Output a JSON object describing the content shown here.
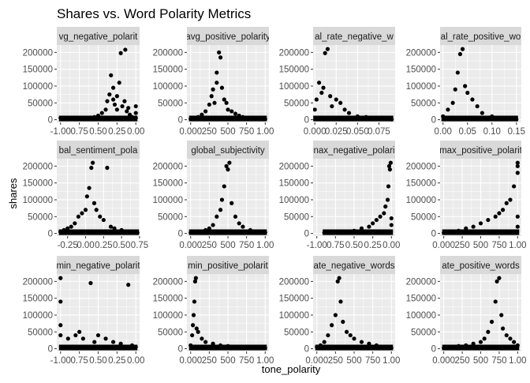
{
  "chart_data": {
    "type": "scatter",
    "title": "Shares vs. Word Polarity Metrics",
    "xlabel": "tone_polarity",
    "ylabel": "shares",
    "ylim": [
      -8000,
      222000
    ],
    "y_ticks": [
      0,
      50000,
      100000,
      150000,
      200000
    ],
    "y_tick_labels": [
      "0",
      "50000",
      "100000",
      "150000",
      "200000"
    ],
    "grid": true,
    "panels": [
      {
        "strip": "avg_negative_polarity",
        "strip_visible": "vg_negative_polarit",
        "xlim": [
          -1.05,
          0.05
        ],
        "x_ticks": [
          -1.0,
          -0.75,
          -0.5,
          -0.25,
          0.0
        ],
        "x_tick_labels": [
          "-1.00",
          "0.75",
          "0.50",
          "0.25",
          "0.00"
        ],
        "points": [
          [
            -1.0,
            5000
          ],
          [
            -0.97,
            3000
          ],
          [
            -0.7,
            2000
          ],
          [
            -0.6,
            6000
          ],
          [
            -0.55,
            8000
          ],
          [
            -0.5,
            12000
          ],
          [
            -0.45,
            20000
          ],
          [
            -0.4,
            30000
          ],
          [
            -0.38,
            55000
          ],
          [
            -0.35,
            75000
          ],
          [
            -0.33,
            132000
          ],
          [
            -0.3,
            95000
          ],
          [
            -0.3,
            60000
          ],
          [
            -0.28,
            45000
          ],
          [
            -0.25,
            70000
          ],
          [
            -0.25,
            30000
          ],
          [
            -0.22,
            110000
          ],
          [
            -0.2,
            198000
          ],
          [
            -0.18,
            40000
          ],
          [
            -0.15,
            55000
          ],
          [
            -0.14,
            208000
          ],
          [
            -0.12,
            25000
          ],
          [
            -0.1,
            35000
          ],
          [
            -0.08,
            15000
          ],
          [
            -0.05,
            8000
          ],
          [
            0.0,
            20000
          ],
          [
            0.0,
            40000
          ],
          [
            0.0,
            5000
          ]
        ]
      },
      {
        "strip": "avg_positive_polarity",
        "strip_visible": "avg_positive_polarity",
        "xlim": [
          -0.05,
          1.05
        ],
        "x_ticks": [
          0.0,
          0.25,
          0.5,
          0.75,
          1.0
        ],
        "x_tick_labels": [
          "0.000",
          "250",
          "500",
          "750",
          "1.00"
        ],
        "points": [
          [
            0.0,
            2000
          ],
          [
            0.05,
            5000
          ],
          [
            0.1,
            8000
          ],
          [
            0.15,
            15000
          ],
          [
            0.2,
            25000
          ],
          [
            0.25,
            45000
          ],
          [
            0.28,
            70000
          ],
          [
            0.3,
            90000
          ],
          [
            0.32,
            50000
          ],
          [
            0.35,
            110000
          ],
          [
            0.35,
            140000
          ],
          [
            0.38,
            200000
          ],
          [
            0.4,
            185000
          ],
          [
            0.42,
            95000
          ],
          [
            0.45,
            60000
          ],
          [
            0.48,
            50000
          ],
          [
            0.5,
            30000
          ],
          [
            0.55,
            25000
          ],
          [
            0.6,
            18000
          ],
          [
            0.65,
            12000
          ],
          [
            0.7,
            8000
          ],
          [
            0.8,
            4000
          ],
          [
            1.0,
            2000
          ]
        ]
      },
      {
        "strip": "global_rate_negative_words",
        "strip_visible": "al_rate_negative_w",
        "xlim": [
          -0.002,
          0.094
        ],
        "x_ticks": [
          0.0,
          0.025,
          0.05,
          0.075
        ],
        "x_tick_labels": [
          "0.000",
          "0.025",
          "0.050",
          "0.075"
        ],
        "points": [
          [
            0.0,
            30000
          ],
          [
            0.002,
            60000
          ],
          [
            0.005,
            110000
          ],
          [
            0.008,
            80000
          ],
          [
            0.01,
            95000
          ],
          [
            0.012,
            198000
          ],
          [
            0.015,
            210000
          ],
          [
            0.018,
            70000
          ],
          [
            0.02,
            40000
          ],
          [
            0.025,
            60000
          ],
          [
            0.03,
            50000
          ],
          [
            0.035,
            30000
          ],
          [
            0.04,
            20000
          ],
          [
            0.05,
            10000
          ],
          [
            0.06,
            8000
          ],
          [
            0.07,
            5000
          ],
          [
            0.085,
            2000
          ],
          [
            0.09,
            1000
          ]
        ]
      },
      {
        "strip": "global_rate_positive_words",
        "strip_visible": "al_rate_positive_wo",
        "xlim": [
          -0.006,
          0.16
        ],
        "x_ticks": [
          0.0,
          0.05,
          0.1,
          0.15
        ],
        "x_tick_labels": [
          "0.00",
          "0.05",
          "0.10",
          "0.15"
        ],
        "points": [
          [
            0.0,
            10000
          ],
          [
            0.01,
            30000
          ],
          [
            0.02,
            50000
          ],
          [
            0.025,
            90000
          ],
          [
            0.03,
            140000
          ],
          [
            0.035,
            195000
          ],
          [
            0.04,
            210000
          ],
          [
            0.045,
            100000
          ],
          [
            0.05,
            80000
          ],
          [
            0.06,
            60000
          ],
          [
            0.07,
            40000
          ],
          [
            0.08,
            20000
          ],
          [
            0.1,
            10000
          ],
          [
            0.12,
            5000
          ],
          [
            0.15,
            1000
          ]
        ]
      },
      {
        "strip": "global_sentiment_polarity",
        "strip_visible": "bal_sentiment_pola",
        "xlim": [
          -0.4,
          0.75
        ],
        "x_ticks": [
          -0.25,
          0.0,
          0.25,
          0.5,
          0.75
        ],
        "x_tick_labels": [
          "-0.25",
          "0.00",
          "0.25",
          "0.50",
          "0.75"
        ],
        "points": [
          [
            -0.35,
            5000
          ],
          [
            -0.3,
            10000
          ],
          [
            -0.25,
            15000
          ],
          [
            -0.2,
            20000
          ],
          [
            -0.15,
            30000
          ],
          [
            -0.1,
            50000
          ],
          [
            -0.05,
            60000
          ],
          [
            0.0,
            70000
          ],
          [
            0.02,
            110000
          ],
          [
            0.05,
            135000
          ],
          [
            0.08,
            195000
          ],
          [
            0.1,
            210000
          ],
          [
            0.12,
            90000
          ],
          [
            0.15,
            70000
          ],
          [
            0.2,
            50000
          ],
          [
            0.25,
            40000
          ],
          [
            0.3,
            195000
          ],
          [
            0.35,
            20000
          ],
          [
            0.4,
            15000
          ],
          [
            0.5,
            10000
          ],
          [
            0.6,
            5000
          ],
          [
            0.72,
            2000
          ]
        ]
      },
      {
        "strip": "global_subjectivity",
        "strip_visible": "global_subjectivity",
        "xlim": [
          -0.05,
          1.05
        ],
        "x_ticks": [
          0.0,
          0.25,
          0.5,
          0.75,
          1.0
        ],
        "x_tick_labels": [
          "0.000",
          "250",
          "500",
          "750",
          "1.00"
        ],
        "points": [
          [
            0.0,
            2000
          ],
          [
            0.1,
            5000
          ],
          [
            0.2,
            10000
          ],
          [
            0.25,
            15000
          ],
          [
            0.3,
            25000
          ],
          [
            0.35,
            50000
          ],
          [
            0.4,
            70000
          ],
          [
            0.42,
            100000
          ],
          [
            0.45,
            140000
          ],
          [
            0.48,
            200000
          ],
          [
            0.5,
            190000
          ],
          [
            0.52,
            210000
          ],
          [
            0.55,
            90000
          ],
          [
            0.6,
            50000
          ],
          [
            0.65,
            30000
          ],
          [
            0.7,
            20000
          ],
          [
            0.8,
            10000
          ],
          [
            1.0,
            3000
          ]
        ]
      },
      {
        "strip": "max_negative_polarity",
        "strip_visible": "nax_negative_polari",
        "xlim": [
          -1.05,
          0.05
        ],
        "x_ticks": [
          -1.0,
          -0.75,
          -0.5,
          -0.25,
          0.0
        ],
        "x_tick_labels": [
          "-1.00",
          "0.75",
          "0.50",
          "0.25",
          "0.00"
        ],
        "points": [
          [
            -0.9,
            2000
          ],
          [
            -0.6,
            5000
          ],
          [
            -0.5,
            8000
          ],
          [
            -0.4,
            15000
          ],
          [
            -0.3,
            20000
          ],
          [
            -0.25,
            30000
          ],
          [
            -0.2,
            40000
          ],
          [
            -0.15,
            50000
          ],
          [
            -0.1,
            60000
          ],
          [
            -0.08,
            80000
          ],
          [
            -0.05,
            100000
          ],
          [
            -0.04,
            140000
          ],
          [
            -0.03,
            200000
          ],
          [
            -0.02,
            190000
          ],
          [
            -0.01,
            210000
          ],
          [
            0.0,
            45000
          ],
          [
            0.0,
            25000
          ]
        ]
      },
      {
        "strip": "max_positive_polarity",
        "strip_visible": "max_positive_polarit",
        "xlim": [
          -0.05,
          1.05
        ],
        "x_ticks": [
          0.0,
          0.25,
          0.5,
          0.75,
          1.0
        ],
        "x_tick_labels": [
          "0.000",
          "250",
          "500",
          "750",
          "1.00"
        ],
        "points": [
          [
            0.0,
            2000
          ],
          [
            0.1,
            5000
          ],
          [
            0.2,
            8000
          ],
          [
            0.3,
            15000
          ],
          [
            0.4,
            20000
          ],
          [
            0.5,
            30000
          ],
          [
            0.6,
            40000
          ],
          [
            0.7,
            50000
          ],
          [
            0.75,
            60000
          ],
          [
            0.8,
            70000
          ],
          [
            0.85,
            90000
          ],
          [
            0.9,
            100000
          ],
          [
            0.95,
            140000
          ],
          [
            1.0,
            200000
          ],
          [
            1.0,
            180000
          ],
          [
            1.0,
            210000
          ],
          [
            1.0,
            50000
          ],
          [
            1.0,
            20000
          ]
        ]
      },
      {
        "strip": "min_negative_polarity",
        "strip_visible": "min_negative_polarit",
        "xlim": [
          -1.05,
          0.05
        ],
        "x_ticks": [
          -1.0,
          -0.75,
          -0.5,
          -0.25,
          0.0
        ],
        "x_tick_labels": [
          "-1.00",
          "0.75",
          "0.50",
          "0.25",
          "0.00"
        ],
        "points": [
          [
            -1.0,
            210000
          ],
          [
            -1.0,
            140000
          ],
          [
            -1.0,
            70000
          ],
          [
            -1.0,
            40000
          ],
          [
            -0.9,
            30000
          ],
          [
            -0.8,
            40000
          ],
          [
            -0.75,
            50000
          ],
          [
            -0.7,
            30000
          ],
          [
            -0.6,
            195000
          ],
          [
            -0.55,
            20000
          ],
          [
            -0.5,
            40000
          ],
          [
            -0.4,
            30000
          ],
          [
            -0.3,
            20000
          ],
          [
            -0.2,
            15000
          ],
          [
            -0.1,
            190000
          ],
          [
            -0.05,
            10000
          ],
          [
            0.0,
            5000
          ]
        ]
      },
      {
        "strip": "min_positive_polarity",
        "strip_visible": "min_positive_polarit",
        "xlim": [
          -0.05,
          1.05
        ],
        "x_ticks": [
          0.0,
          0.25,
          0.5,
          0.75,
          1.0
        ],
        "x_tick_labels": [
          "0.000",
          "250",
          "500",
          "750",
          "1.00"
        ],
        "points": [
          [
            0.0,
            10000
          ],
          [
            0.02,
            40000
          ],
          [
            0.03,
            70000
          ],
          [
            0.04,
            100000
          ],
          [
            0.05,
            140000
          ],
          [
            0.06,
            200000
          ],
          [
            0.07,
            210000
          ],
          [
            0.08,
            60000
          ],
          [
            0.1,
            50000
          ],
          [
            0.15,
            30000
          ],
          [
            0.2,
            20000
          ],
          [
            0.3,
            15000
          ],
          [
            0.4,
            10000
          ],
          [
            0.5,
            8000
          ],
          [
            0.6,
            5000
          ],
          [
            0.7,
            4000
          ],
          [
            0.8,
            3000
          ],
          [
            1.0,
            2000
          ]
        ]
      },
      {
        "strip": "rate_negative_words",
        "strip_visible": "ate_negative_words",
        "xlim": [
          -0.05,
          1.05
        ],
        "x_ticks": [
          0.0,
          0.25,
          0.5,
          0.75,
          1.0
        ],
        "x_tick_labels": [
          "0.000",
          "250",
          "500",
          "750",
          "1.00"
        ],
        "points": [
          [
            0.0,
            5000
          ],
          [
            0.05,
            10000
          ],
          [
            0.1,
            20000
          ],
          [
            0.15,
            40000
          ],
          [
            0.2,
            70000
          ],
          [
            0.25,
            100000
          ],
          [
            0.28,
            200000
          ],
          [
            0.3,
            210000
          ],
          [
            0.32,
            140000
          ],
          [
            0.35,
            80000
          ],
          [
            0.4,
            50000
          ],
          [
            0.45,
            40000
          ],
          [
            0.5,
            30000
          ],
          [
            0.6,
            20000
          ],
          [
            0.7,
            15000
          ],
          [
            0.8,
            10000
          ],
          [
            0.9,
            5000
          ],
          [
            1.0,
            2000
          ]
        ]
      },
      {
        "strip": "rate_positive_words",
        "strip_visible": "ate_positive_words",
        "xlim": [
          -0.05,
          1.05
        ],
        "x_ticks": [
          0.0,
          0.25,
          0.5,
          0.75,
          1.0
        ],
        "x_tick_labels": [
          "0.000",
          "250",
          "500",
          "750",
          "1.00"
        ],
        "points": [
          [
            0.0,
            2000
          ],
          [
            0.1,
            5000
          ],
          [
            0.2,
            8000
          ],
          [
            0.3,
            10000
          ],
          [
            0.4,
            15000
          ],
          [
            0.5,
            20000
          ],
          [
            0.55,
            30000
          ],
          [
            0.6,
            50000
          ],
          [
            0.65,
            80000
          ],
          [
            0.7,
            140000
          ],
          [
            0.72,
            200000
          ],
          [
            0.75,
            210000
          ],
          [
            0.78,
            100000
          ],
          [
            0.8,
            60000
          ],
          [
            0.85,
            40000
          ],
          [
            0.9,
            30000
          ],
          [
            0.95,
            20000
          ],
          [
            1.0,
            10000
          ]
        ]
      }
    ]
  }
}
